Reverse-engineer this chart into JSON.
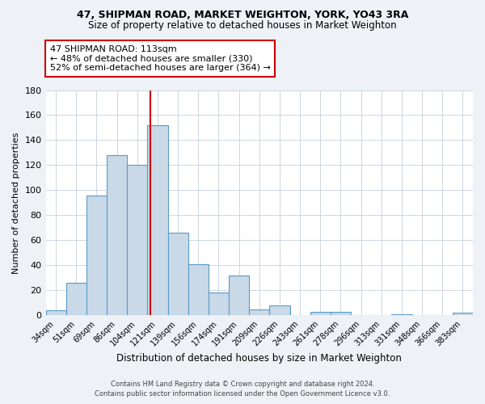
{
  "title": "47, SHIPMAN ROAD, MARKET WEIGHTON, YORK, YO43 3RA",
  "subtitle": "Size of property relative to detached houses in Market Weighton",
  "xlabel": "Distribution of detached houses by size in Market Weighton",
  "ylabel": "Number of detached properties",
  "categories": [
    "34sqm",
    "51sqm",
    "69sqm",
    "86sqm",
    "104sqm",
    "121sqm",
    "139sqm",
    "156sqm",
    "174sqm",
    "191sqm",
    "209sqm",
    "226sqm",
    "243sqm",
    "261sqm",
    "278sqm",
    "296sqm",
    "313sqm",
    "331sqm",
    "348sqm",
    "366sqm",
    "383sqm"
  ],
  "values": [
    4,
    26,
    96,
    128,
    120,
    152,
    66,
    41,
    18,
    32,
    5,
    8,
    0,
    3,
    3,
    0,
    0,
    1,
    0,
    0,
    2
  ],
  "bar_color": "#c9d9e8",
  "bar_edge_color": "#5a9bc7",
  "vline_x_index": 4.65,
  "vline_color": "#cc0000",
  "annotation_line1": "47 SHIPMAN ROAD: 113sqm",
  "annotation_line2": "← 48% of detached houses are smaller (330)",
  "annotation_line3": "52% of semi-detached houses are larger (364) →",
  "annotation_box_color": "#ffffff",
  "annotation_box_edge": "#cc0000",
  "ylim": [
    0,
    180
  ],
  "yticks": [
    0,
    20,
    40,
    60,
    80,
    100,
    120,
    140,
    160,
    180
  ],
  "footer_line1": "Contains HM Land Registry data © Crown copyright and database right 2024.",
  "footer_line2": "Contains public sector information licensed under the Open Government Licence v3.0.",
  "background_color": "#eef2f7",
  "plot_background": "#ffffff",
  "grid_color": "#c8d0dc",
  "title_fontsize": 9,
  "subtitle_fontsize": 8.5,
  "figsize": [
    6.0,
    5.0
  ],
  "dpi": 100
}
